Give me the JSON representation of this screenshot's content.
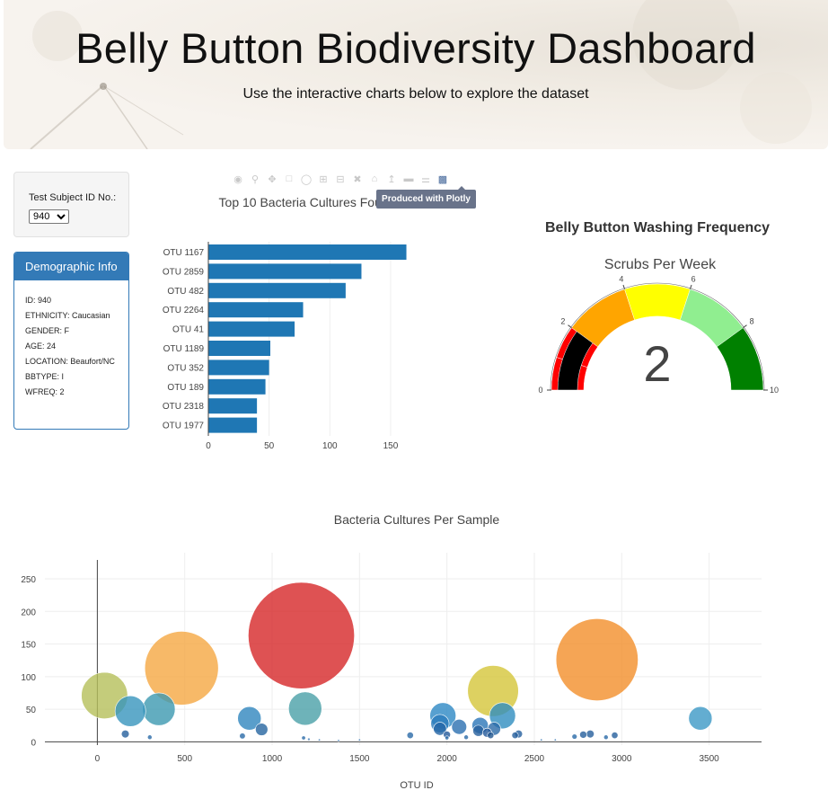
{
  "header": {
    "title": "Belly Button Biodiversity Dashboard",
    "subtitle": "Use the interactive charts below to explore the dataset"
  },
  "selector": {
    "label": "Test Subject ID No.:",
    "selected": "940"
  },
  "demographics": {
    "heading": "Demographic Info",
    "rows": [
      "ID: 940",
      "ETHNICITY: Caucasian",
      "GENDER: F",
      "AGE: 24",
      "LOCATION: Beaufort/NC",
      "BBTYPE: I",
      "WFREQ: 2"
    ]
  },
  "modebar": {
    "icons": [
      "camera-icon",
      "zoom-icon",
      "pan-icon",
      "box-select-icon",
      "lasso-icon",
      "zoom-in-icon",
      "zoom-out-icon",
      "autoscale-icon",
      "home-icon",
      "spike-lines-icon",
      "hover-closest-icon",
      "hover-compare-icon",
      "plotly-logo-icon"
    ],
    "tooltip": "Produced with Plotly"
  },
  "chart_data": [
    {
      "type": "bar",
      "orientation": "horizontal",
      "title": "Top 10 Bacteria Cultures Found",
      "categories": [
        "OTU 1167",
        "OTU 2859",
        "OTU 482",
        "OTU 2264",
        "OTU 41",
        "OTU 1189",
        "OTU 352",
        "OTU 189",
        "OTU 2318",
        "OTU 1977"
      ],
      "values": [
        163,
        126,
        113,
        78,
        71,
        51,
        50,
        47,
        40,
        40
      ],
      "xticks": [
        0,
        50,
        100,
        150
      ],
      "xlim": [
        0,
        170
      ],
      "color": "#1f77b4"
    },
    {
      "type": "gauge",
      "title": "Belly Button Washing Frequency",
      "subtitle": "Scrubs Per Week",
      "value": 2,
      "range": [
        0,
        10
      ],
      "ticks": [
        0,
        2,
        4,
        6,
        8,
        10
      ],
      "steps": [
        {
          "from": 0,
          "to": 1,
          "color": "#ff0000"
        },
        {
          "from": 1,
          "to": 2,
          "color": "#ff0000"
        },
        {
          "from": 2,
          "to": 4,
          "color": "#ffa500"
        },
        {
          "from": 4,
          "to": 6,
          "color": "#ffff00"
        },
        {
          "from": 6,
          "to": 8,
          "color": "#90ee90"
        },
        {
          "from": 8,
          "to": 10,
          "color": "#008000"
        }
      ],
      "bar_color": "#000000"
    },
    {
      "type": "scatter",
      "title": "Bacteria Cultures Per Sample",
      "xlabel": "OTU ID",
      "ylabel": "",
      "xlim": [
        -300,
        3800
      ],
      "ylim": [
        -5,
        290
      ],
      "xticks": [
        0,
        500,
        1000,
        1500,
        2000,
        2500,
        3000,
        3500
      ],
      "yticks": [
        0,
        50,
        100,
        150,
        200,
        250
      ],
      "grid": true,
      "points": [
        {
          "x": 1167,
          "y": 163,
          "color": "#d62728"
        },
        {
          "x": 2859,
          "y": 126,
          "color": "#f28e2b"
        },
        {
          "x": 482,
          "y": 113,
          "color": "#f5a742"
        },
        {
          "x": 2264,
          "y": 78,
          "color": "#d4c63a"
        },
        {
          "x": 41,
          "y": 71,
          "color": "#b5bf5a"
        },
        {
          "x": 1189,
          "y": 51,
          "color": "#4aa0a8"
        },
        {
          "x": 352,
          "y": 50,
          "color": "#3c98b0"
        },
        {
          "x": 189,
          "y": 47,
          "color": "#3795bd"
        },
        {
          "x": 2318,
          "y": 40,
          "color": "#2f8dbf"
        },
        {
          "x": 1977,
          "y": 40,
          "color": "#2d88c4"
        },
        {
          "x": 3450,
          "y": 36,
          "color": "#3c99c6"
        },
        {
          "x": 870,
          "y": 36,
          "color": "#2f86be"
        },
        {
          "x": 1960,
          "y": 28,
          "color": "#2c7cbc"
        },
        {
          "x": 2190,
          "y": 25,
          "color": "#2a76b8"
        },
        {
          "x": 2070,
          "y": 23,
          "color": "#2a6fb0"
        },
        {
          "x": 1960,
          "y": 20,
          "color": "#2566a6"
        },
        {
          "x": 2270,
          "y": 20,
          "color": "#2a6aa8"
        },
        {
          "x": 940,
          "y": 19,
          "color": "#2565a0"
        },
        {
          "x": 2180,
          "y": 17,
          "color": "#255f9c"
        },
        {
          "x": 2230,
          "y": 14,
          "color": "#23599a"
        },
        {
          "x": 2410,
          "y": 12,
          "color": "#245f9e"
        },
        {
          "x": 2820,
          "y": 12,
          "color": "#255f9c"
        },
        {
          "x": 2780,
          "y": 11,
          "color": "#255f9c"
        },
        {
          "x": 2000,
          "y": 11,
          "color": "#23599a"
        },
        {
          "x": 2250,
          "y": 10,
          "color": "#22568f"
        },
        {
          "x": 2960,
          "y": 10,
          "color": "#255f9c"
        },
        {
          "x": 160,
          "y": 12,
          "color": "#255f9c"
        },
        {
          "x": 2390,
          "y": 10,
          "color": "#255f9c"
        },
        {
          "x": 1790,
          "y": 10,
          "color": "#2a6aa8"
        },
        {
          "x": 2730,
          "y": 8,
          "color": "#2a6aa8"
        },
        {
          "x": 830,
          "y": 9,
          "color": "#2a6aa8"
        },
        {
          "x": 300,
          "y": 7,
          "color": "#2a6aa8"
        },
        {
          "x": 2910,
          "y": 7,
          "color": "#2a6aa8"
        },
        {
          "x": 2110,
          "y": 7,
          "color": "#2a6aa8"
        },
        {
          "x": 2000,
          "y": 6,
          "color": "#2a6aa8"
        },
        {
          "x": 1180,
          "y": 6,
          "color": "#2a6aa8"
        },
        {
          "x": 1210,
          "y": 4,
          "color": "#3d7ab5"
        },
        {
          "x": 1270,
          "y": 3,
          "color": "#3d7ab5"
        },
        {
          "x": 1500,
          "y": 3,
          "color": "#3d7ab5"
        },
        {
          "x": 2540,
          "y": 3,
          "color": "#3d7ab5"
        },
        {
          "x": 2620,
          "y": 3,
          "color": "#3d7ab5"
        },
        {
          "x": 1380,
          "y": 2,
          "color": "#3d7ab5"
        }
      ]
    }
  ]
}
